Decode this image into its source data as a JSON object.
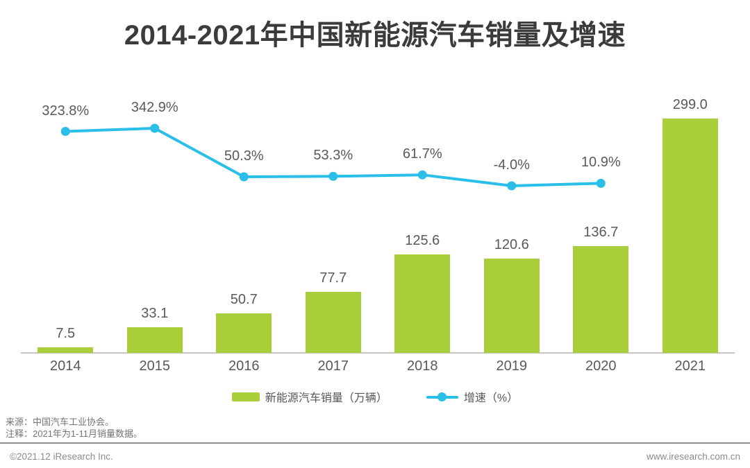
{
  "chart_data": {
    "type": "bar+line",
    "title": "2014-2021年中国新能源汽车销量及增速",
    "categories": [
      "2014",
      "2015",
      "2016",
      "2017",
      "2018",
      "2019",
      "2020",
      "2021"
    ],
    "series": [
      {
        "name": "新能源汽车销量（万辆）",
        "type": "bar",
        "color": "#a8ce3a",
        "values": [
          7.5,
          33.1,
          50.7,
          77.7,
          125.6,
          120.6,
          136.7,
          299.0
        ],
        "labels": [
          "7.5",
          "33.1",
          "50.7",
          "77.7",
          "125.6",
          "120.6",
          "136.7",
          "299.0"
        ]
      },
      {
        "name": "增速（%）",
        "type": "line",
        "color": "#29bfe8",
        "values": [
          323.8,
          342.9,
          50.3,
          53.3,
          61.7,
          -4.0,
          10.9
        ],
        "labels": [
          "323.8%",
          "342.9%",
          "50.3%",
          "53.3%",
          "61.7%",
          "-4.0%",
          "10.9%"
        ]
      }
    ],
    "legend_position": "bottom",
    "grid": false,
    "y_axis_ticks_visible": false,
    "label_color": "#595959",
    "title_color": "#3b3b3b"
  },
  "footer": {
    "source": "来源：中国汽车工业协会。",
    "note": "注释：2021年为1-11月销量数据。",
    "copyright": "©2021.12 iResearch Inc.",
    "website": "www.iresearch.com.cn"
  }
}
